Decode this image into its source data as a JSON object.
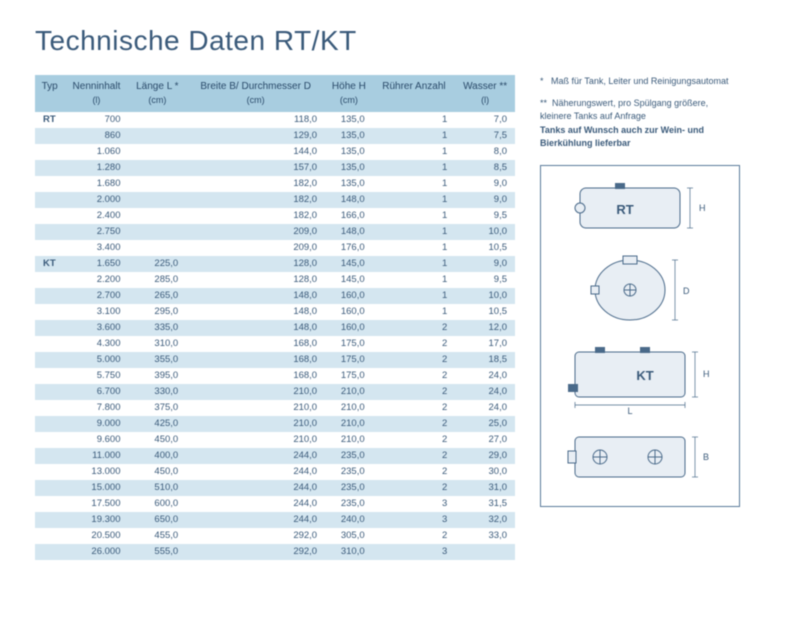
{
  "title": "Technische Daten RT/KT",
  "table": {
    "columns": [
      {
        "label": "Typ",
        "unit": ""
      },
      {
        "label": "Nenninhalt",
        "unit": "(l)"
      },
      {
        "label": "Länge L *",
        "unit": "(cm)"
      },
      {
        "label": "Breite B/ Durchmesser D",
        "unit": "(cm)"
      },
      {
        "label": "Höhe H",
        "unit": "(cm)"
      },
      {
        "label": "Rührer Anzahl",
        "unit": ""
      },
      {
        "label": "Wasser **",
        "unit": "(l)"
      }
    ],
    "rows": [
      [
        "RT",
        "700",
        "",
        "118,0",
        "135,0",
        "1",
        "7,0"
      ],
      [
        "",
        "860",
        "",
        "129,0",
        "135,0",
        "1",
        "7,5"
      ],
      [
        "",
        "1.060",
        "",
        "144,0",
        "135,0",
        "1",
        "8,0"
      ],
      [
        "",
        "1.280",
        "",
        "157,0",
        "135,0",
        "1",
        "8,5"
      ],
      [
        "",
        "1.680",
        "",
        "182,0",
        "135,0",
        "1",
        "9,0"
      ],
      [
        "",
        "2.000",
        "",
        "182,0",
        "148,0",
        "1",
        "9,0"
      ],
      [
        "",
        "2.400",
        "",
        "182,0",
        "166,0",
        "1",
        "9,5"
      ],
      [
        "",
        "2.750",
        "",
        "209,0",
        "148,0",
        "1",
        "10,0"
      ],
      [
        "",
        "3.400",
        "",
        "209,0",
        "176,0",
        "1",
        "10,5"
      ],
      [
        "KT",
        "1.650",
        "225,0",
        "128,0",
        "145,0",
        "1",
        "9,0"
      ],
      [
        "",
        "2.200",
        "285,0",
        "128,0",
        "145,0",
        "1",
        "9,5"
      ],
      [
        "",
        "2.700",
        "265,0",
        "148,0",
        "160,0",
        "1",
        "10,0"
      ],
      [
        "",
        "3.100",
        "295,0",
        "148,0",
        "160,0",
        "1",
        "10,5"
      ],
      [
        "",
        "3.600",
        "335,0",
        "148,0",
        "160,0",
        "2",
        "12,0"
      ],
      [
        "",
        "4.300",
        "310,0",
        "168,0",
        "175,0",
        "2",
        "17,0"
      ],
      [
        "",
        "5.000",
        "355,0",
        "168,0",
        "175,0",
        "2",
        "18,5"
      ],
      [
        "",
        "5.750",
        "395,0",
        "168,0",
        "175,0",
        "2",
        "24,0"
      ],
      [
        "",
        "6.700",
        "330,0",
        "210,0",
        "210,0",
        "2",
        "24,0"
      ],
      [
        "",
        "7.800",
        "375,0",
        "210,0",
        "210,0",
        "2",
        "24,0"
      ],
      [
        "",
        "9.000",
        "425,0",
        "210,0",
        "210,0",
        "2",
        "25,0"
      ],
      [
        "",
        "9.600",
        "450,0",
        "210,0",
        "210,0",
        "2",
        "27,0"
      ],
      [
        "",
        "11.000",
        "400,0",
        "244,0",
        "235,0",
        "2",
        "29,0"
      ],
      [
        "",
        "13.000",
        "450,0",
        "244,0",
        "235,0",
        "2",
        "30,0"
      ],
      [
        "",
        "15.000",
        "510,0",
        "244,0",
        "235,0",
        "2",
        "31,0"
      ],
      [
        "",
        "17.500",
        "600,0",
        "244,0",
        "235,0",
        "3",
        "31,5"
      ],
      [
        "",
        "19.300",
        "650,0",
        "244,0",
        "240,0",
        "3",
        "32,0"
      ],
      [
        "",
        "20.500",
        "455,0",
        "292,0",
        "305,0",
        "2",
        "33,0"
      ],
      [
        "",
        "26.000",
        "555,0",
        "292,0",
        "310,0",
        "3",
        ""
      ]
    ],
    "header_bg": "#a8cde0",
    "row_even_bg": "#d4e6f0",
    "row_odd_bg": "#ffffff"
  },
  "notes": {
    "n1_prefix": "*",
    "n1_text": "Maß für Tank, Leiter und Reinigungsautomat",
    "n2_prefix": "**",
    "n2_text": "Näherungswert, pro Spülgang größere, kleinere Tanks auf Anfrage",
    "bold_text": "Tanks auf Wunsch auch zur Wein- und Bierkühlung lieferbar"
  },
  "diagrams": {
    "rt_label": "RT",
    "kt_label": "KT",
    "dim_L": "L",
    "dim_B": "B",
    "dim_D": "D",
    "dim_H": "H",
    "stroke": "#4a6a8a",
    "fill": "#e8eef4"
  }
}
